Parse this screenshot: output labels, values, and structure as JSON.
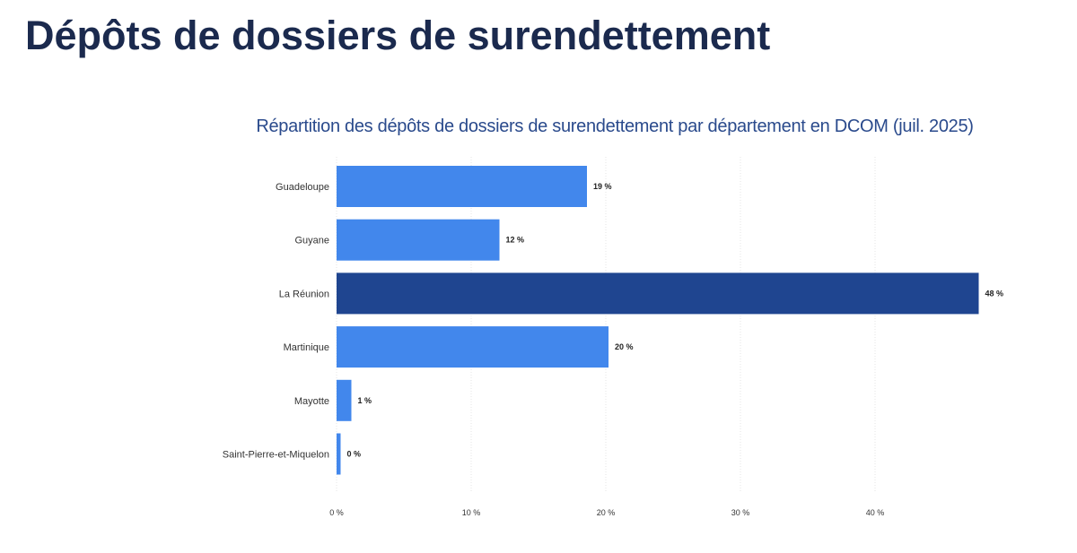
{
  "page_title": "Dépôts de dossiers de surendettement",
  "chart_data": {
    "type": "bar",
    "orientation": "horizontal",
    "title": "Répartition des dépôts de dossiers de surendettement par département en DCOM (juil. 2025)",
    "categories": [
      "Guadeloupe",
      "Guyane",
      "La Réunion",
      "Martinique",
      "Mayotte",
      "Saint-Pierre-et-Miquelon"
    ],
    "values": [
      18.6,
      12.1,
      47.7,
      20.2,
      1.1,
      0.3
    ],
    "data_labels": [
      "19 %",
      "12 %",
      "48 %",
      "20 %",
      "1 %",
      "0 %"
    ],
    "highlight_index": 2,
    "colors": {
      "default": "#4287ec",
      "highlight": "#1f4590"
    },
    "xlim": [
      0,
      48
    ],
    "x_ticks": [
      0,
      10,
      20,
      30,
      40
    ],
    "x_tick_labels": [
      "0 %",
      "10 %",
      "20 %",
      "30 %",
      "40 %"
    ],
    "xlabel": "",
    "ylabel": "",
    "grid": true
  }
}
